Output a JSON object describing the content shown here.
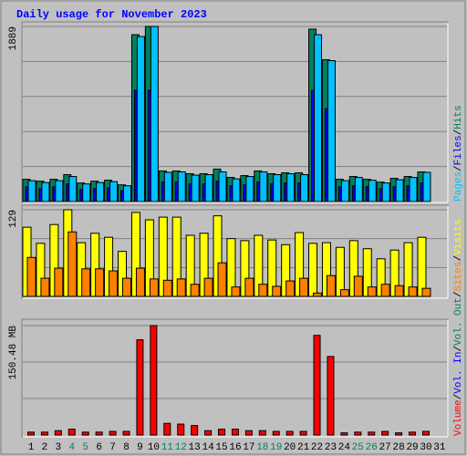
{
  "chart_data": [
    {
      "type": "bar",
      "title": "Daily usage for November 2023",
      "ylim": [
        0,
        1889
      ],
      "yticks": [
        1889
      ],
      "grid": true,
      "legend_separator": "/",
      "series": [
        {
          "name": "Hits",
          "color": "#00805c",
          "values": [
            240,
            220,
            240,
            290,
            200,
            220,
            230,
            180,
            1800,
            1889,
            330,
            330,
            300,
            300,
            350,
            260,
            280,
            330,
            300,
            310,
            310,
            1860,
            1530,
            240,
            270,
            240,
            210,
            250,
            270,
            320,
            null
          ]
        },
        {
          "name": "Files",
          "color": "#0000ff",
          "values": [
            160,
            140,
            160,
            190,
            130,
            140,
            150,
            120,
            1200,
            1200,
            210,
            210,
            190,
            190,
            220,
            170,
            180,
            210,
            190,
            200,
            200,
            1200,
            1000,
            160,
            170,
            160,
            140,
            160,
            170,
            200,
            null
          ]
        },
        {
          "name": "Pages",
          "color": "#00c0ff",
          "values": [
            225,
            205,
            225,
            270,
            190,
            205,
            215,
            170,
            1780,
            1889,
            315,
            320,
            285,
            290,
            320,
            245,
            270,
            320,
            290,
            300,
            290,
            1800,
            1520,
            225,
            260,
            230,
            200,
            235,
            260,
            315,
            null
          ]
        }
      ]
    },
    {
      "type": "bar",
      "ylim": [
        0,
        129
      ],
      "yticks": [
        129
      ],
      "grid": true,
      "series": [
        {
          "name": "Visits",
          "color": "#ffff00",
          "values": [
            103,
            79,
            107,
            129,
            80,
            94,
            88,
            67,
            125,
            114,
            118,
            118,
            91,
            94,
            120,
            86,
            83,
            91,
            84,
            77,
            95,
            79,
            80,
            73,
            83,
            71,
            56,
            69,
            80,
            88,
            null
          ]
        },
        {
          "name": "Sites",
          "color": "#ff8000",
          "values": [
            58,
            27,
            42,
            96,
            41,
            41,
            38,
            27,
            42,
            26,
            24,
            26,
            18,
            27,
            50,
            14,
            27,
            18,
            15,
            23,
            27,
            5,
            31,
            10,
            30,
            14,
            18,
            16,
            14,
            12,
            null
          ]
        }
      ]
    },
    {
      "type": "bar",
      "ylim": [
        0,
        150.48
      ],
      "yticks": [
        {
          "value": 150.48,
          "label": "150.48 MB"
        }
      ],
      "grid": true,
      "categories": [
        "1",
        "2",
        "3",
        "4",
        "5",
        "6",
        "7",
        "8",
        "9",
        "10",
        "11",
        "12",
        "13",
        "14",
        "15",
        "16",
        "17",
        "18",
        "19",
        "20",
        "21",
        "22",
        "23",
        "24",
        "25",
        "26",
        "27",
        "28",
        "29",
        "30",
        "31"
      ],
      "category_colors": [
        "#000000",
        "#000000",
        "#000000",
        "#00805c",
        "#00805c",
        "#000000",
        "#000000",
        "#000000",
        "#000000",
        "#000000",
        "#00805c",
        "#00805c",
        "#000000",
        "#000000",
        "#000000",
        "#000000",
        "#000000",
        "#00805c",
        "#00805c",
        "#000000",
        "#000000",
        "#000000",
        "#000000",
        "#000000",
        "#00805c",
        "#00805c",
        "#000000",
        "#000000",
        "#000000",
        "#000000",
        "#000000"
      ],
      "series": [
        {
          "name": "Volume",
          "color": "#ff0000",
          "values": [
            4,
            4,
            6,
            8,
            4,
            4,
            5,
            5,
            131,
            150.48,
            16,
            15,
            13,
            6,
            8,
            8,
            6,
            6,
            5,
            5,
            5,
            137,
            108,
            3,
            4,
            4,
            5,
            3,
            4,
            5,
            null
          ]
        },
        {
          "name": "Vol. In",
          "color": "#0000ff",
          "values": [
            null,
            null,
            null,
            null,
            null,
            null,
            null,
            null,
            null,
            null,
            null,
            null,
            null,
            null,
            null,
            null,
            null,
            null,
            null,
            null,
            null,
            null,
            null,
            null,
            null,
            null,
            null,
            null,
            null,
            null,
            null
          ]
        },
        {
          "name": "Vol. Out",
          "color": "#00805c",
          "values": [
            null,
            null,
            null,
            null,
            null,
            null,
            null,
            null,
            null,
            null,
            null,
            null,
            null,
            null,
            null,
            null,
            null,
            null,
            null,
            null,
            null,
            null,
            null,
            null,
            null,
            null,
            null,
            null,
            null,
            null,
            null
          ]
        }
      ]
    }
  ]
}
